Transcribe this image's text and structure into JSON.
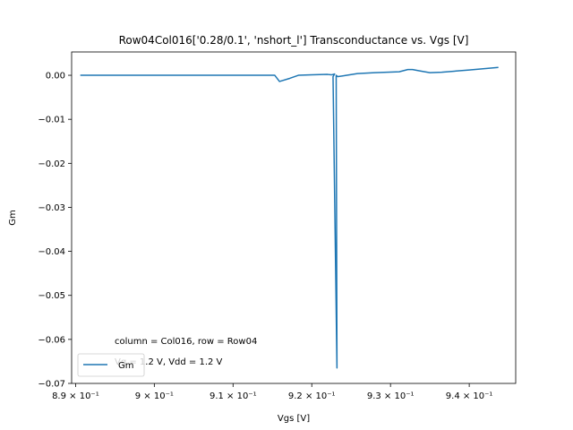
{
  "chart_data": {
    "type": "line",
    "title": "Row04Col016['0.28/0.1', 'nshort_l'] Transconductance vs. Vgs [V]",
    "xlabel": "Vgs [V]",
    "ylabel": "Gm",
    "xlim": [
      0.8895,
      0.9459
    ],
    "ylim": [
      -0.07,
      0.0053
    ],
    "x_tick_values": [
      0.89,
      0.9,
      0.91,
      0.92,
      0.93,
      0.94
    ],
    "x_tick_labels": [
      "8.9 × 10⁻¹",
      "9 × 10⁻¹",
      "9.1 × 10⁻¹",
      "9.2 × 10⁻¹",
      "9.3 × 10⁻¹",
      "9.4 × 10⁻¹"
    ],
    "y_tick_values": [
      0.0,
      -0.01,
      -0.02,
      -0.03,
      -0.04,
      -0.05,
      -0.06,
      -0.07
    ],
    "y_tick_labels": [
      "0.00",
      "−0.01",
      "−0.02",
      "−0.03",
      "−0.04",
      "−0.05",
      "−0.06",
      "−0.07"
    ],
    "grid": false,
    "legend_position": "lower-left",
    "series": [
      {
        "name": "Gm",
        "color": "#1f77b4",
        "points": [
          [
            0.8906,
            0.0
          ],
          [
            0.8911,
            0.0
          ],
          [
            0.8908,
            0.0
          ],
          [
            0.892,
            0.0
          ],
          [
            0.9,
            0.0
          ],
          [
            0.91,
            0.0
          ],
          [
            0.9153,
            0.0
          ],
          [
            0.9159,
            -0.0014
          ],
          [
            0.9172,
            -0.0007
          ],
          [
            0.9183,
            0.0
          ],
          [
            0.92,
            0.0001
          ],
          [
            0.922,
            0.0002
          ],
          [
            0.9225,
            0.0001
          ],
          [
            0.9229,
            0.0003
          ],
          [
            0.9227,
            -0.0003
          ],
          [
            0.9232,
            -0.0665
          ],
          [
            0.9231,
            0.0
          ],
          [
            0.9233,
            -0.0003
          ],
          [
            0.9241,
            -0.0001
          ],
          [
            0.9258,
            0.0004
          ],
          [
            0.928,
            0.0006
          ],
          [
            0.9311,
            0.0008
          ],
          [
            0.9322,
            0.0013
          ],
          [
            0.9328,
            0.0013
          ],
          [
            0.9337,
            0.001
          ],
          [
            0.935,
            0.0006
          ],
          [
            0.9365,
            0.0007
          ],
          [
            0.94,
            0.0012
          ],
          [
            0.9437,
            0.0018
          ]
        ]
      }
    ],
    "annotations": [
      "column = Col016, row = Row04",
      "Vg = 1.2 V, Vdd = 1.2 V"
    ]
  }
}
